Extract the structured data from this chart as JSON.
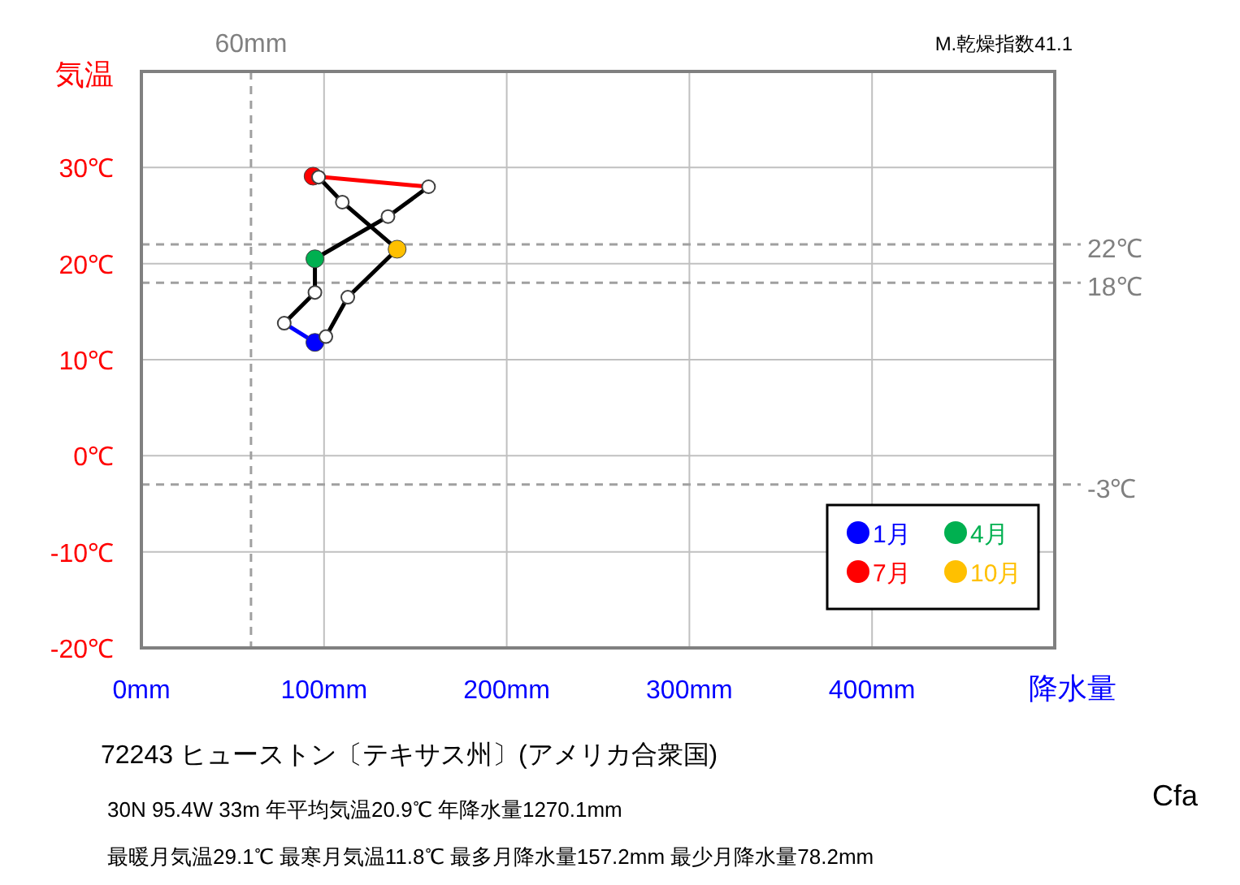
{
  "chart_data": {
    "type": "line",
    "xlabel": "降水量",
    "ylabel": "気温",
    "xlim": [
      0,
      500
    ],
    "ylim": [
      -20,
      40
    ],
    "xticks": [
      {
        "value": 0,
        "label": "0mm"
      },
      {
        "value": 100,
        "label": "100mm"
      },
      {
        "value": 200,
        "label": "200mm"
      },
      {
        "value": 300,
        "label": "300mm"
      },
      {
        "value": 400,
        "label": "400mm"
      },
      {
        "value": 500,
        "label": null
      }
    ],
    "yticks": [
      {
        "value": -20,
        "label": "-20℃"
      },
      {
        "value": -10,
        "label": "-10℃"
      },
      {
        "value": 0,
        "label": "0℃"
      },
      {
        "value": 10,
        "label": "10℃"
      },
      {
        "value": 20,
        "label": "20℃"
      },
      {
        "value": 30,
        "label": "30℃"
      },
      {
        "value": 40,
        "label": null
      }
    ],
    "grid": true,
    "legend": "bottom right",
    "ref_lines": [
      {
        "axis": "x",
        "value": 60,
        "label": "60mm",
        "color": "#a0a0a0",
        "line_style": "dashed"
      },
      {
        "axis": "y",
        "value": 22,
        "label": "22℃",
        "color": "#a0a0a0",
        "line_style": "dashed"
      },
      {
        "axis": "y",
        "value": 18,
        "label": "18℃",
        "color": "#a0a0a0",
        "line_style": "dashed"
      },
      {
        "axis": "y",
        "value": -3,
        "label": "-3℃",
        "color": "#a0a0a0",
        "line_style": "dashed"
      }
    ],
    "annotations": [
      "M.乾燥指数41.1",
      "72243  ヒューストン〔テキサス州〕(アメリカ合衆国)",
      "30N  95.4W 33m  年平均気温20.9℃ 年降水量1270.1mm",
      "最暖月気温29.1℃ 最寒月気温11.8℃ 最多月降水量157.2mm 最少月降水量78.2mm",
      "Cfa"
    ],
    "series": [
      {
        "type": "line",
        "color": "#0000ff",
        "x": [
          95,
          78.2
        ],
        "values": [
          11.8,
          13.8
        ]
      },
      {
        "type": "line",
        "color": "#000000",
        "x": [
          78.2,
          95,
          95,
          135,
          157.2
        ],
        "values": [
          13.8,
          17.0,
          20.5,
          24.9,
          28.0
        ]
      },
      {
        "type": "line",
        "color": "#ff0000",
        "x": [
          157.2,
          94
        ],
        "values": [
          28.0,
          29.1
        ]
      },
      {
        "type": "line",
        "color": "#000000",
        "x": [
          94,
          97,
          110,
          140,
          113,
          101,
          95
        ],
        "values": [
          29.1,
          29.0,
          26.4,
          21.5,
          16.5,
          12.4,
          11.8
        ]
      },
      {
        "type": "scatter",
        "marker": "circle",
        "color": "#ffffff",
        "x": [
          78.2,
          95,
          135,
          157.2,
          97,
          110,
          113,
          101
        ],
        "values": [
          13.8,
          17.0,
          24.9,
          28.0,
          29.0,
          26.4,
          16.5,
          12.4
        ]
      },
      {
        "type": "scatter",
        "marker": "circle",
        "name": "1月",
        "color": "#0000ff",
        "x": [
          95
        ],
        "values": [
          11.8
        ]
      },
      {
        "type": "scatter",
        "marker": "circle",
        "name": "4月",
        "color": "#00b050",
        "x": [
          95
        ],
        "values": [
          20.5
        ]
      },
      {
        "type": "scatter",
        "marker": "circle",
        "name": "7月",
        "color": "#ff0000",
        "x": [
          94
        ],
        "values": [
          29.1
        ]
      },
      {
        "type": "scatter",
        "marker": "circle",
        "name": "10月",
        "color": "#ffc000",
        "x": [
          140
        ],
        "values": [
          21.5
        ]
      }
    ]
  }
}
